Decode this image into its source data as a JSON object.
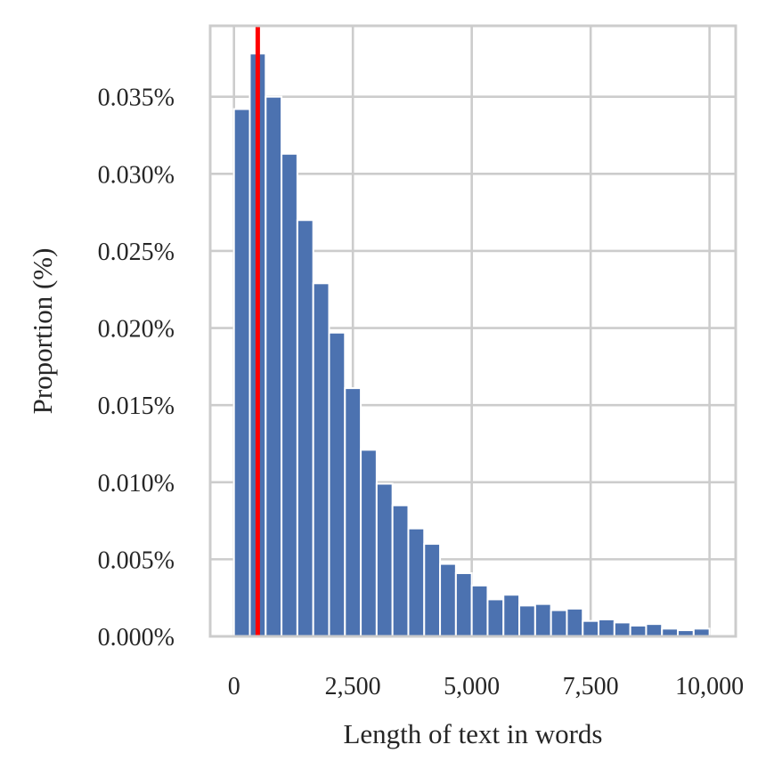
{
  "chart_data": {
    "type": "bar",
    "xlabel": "Length of text in words",
    "ylabel": "Proportion (%)",
    "xlim": [
      -500,
      10550
    ],
    "ylim": [
      0,
      0.0396
    ],
    "x_ticks": [
      0,
      2500,
      5000,
      7500,
      10000
    ],
    "x_tick_labels": [
      "0",
      "2,500",
      "5,000",
      "7,500",
      "10,000"
    ],
    "y_ticks": [
      0,
      0.005,
      0.01,
      0.015,
      0.02,
      0.025,
      0.03,
      0.035
    ],
    "y_tick_labels": [
      "0.000%",
      "0.005%",
      "0.010%",
      "0.015%",
      "0.020%",
      "0.025%",
      "0.030%",
      "0.035%"
    ],
    "grid": true,
    "bar_color": "#4c72b0",
    "bin_width": 333.33,
    "bin_starts": [
      0,
      333.33,
      666.67,
      1000,
      1333.33,
      1666.67,
      2000,
      2333.33,
      2666.67,
      3000,
      3333.33,
      3666.67,
      4000,
      4333.33,
      4666.67,
      5000,
      5333.33,
      5666.67,
      6000,
      6333.33,
      6666.67,
      7000,
      7333.33,
      7666.67,
      8000,
      8333.33,
      8666.67,
      9000,
      9333.33,
      9666.67
    ],
    "values": [
      0.0342,
      0.0378,
      0.035,
      0.0313,
      0.027,
      0.0229,
      0.0197,
      0.0161,
      0.0121,
      0.0099,
      0.0085,
      0.007,
      0.006,
      0.0047,
      0.0041,
      0.0033,
      0.0024,
      0.0027,
      0.002,
      0.0021,
      0.0017,
      0.0018,
      0.001,
      0.0011,
      0.0009,
      0.0007,
      0.0008,
      0.0005,
      0.0004,
      0.0005
    ],
    "reference_line": {
      "x": 500,
      "color": "#ff0000"
    }
  }
}
